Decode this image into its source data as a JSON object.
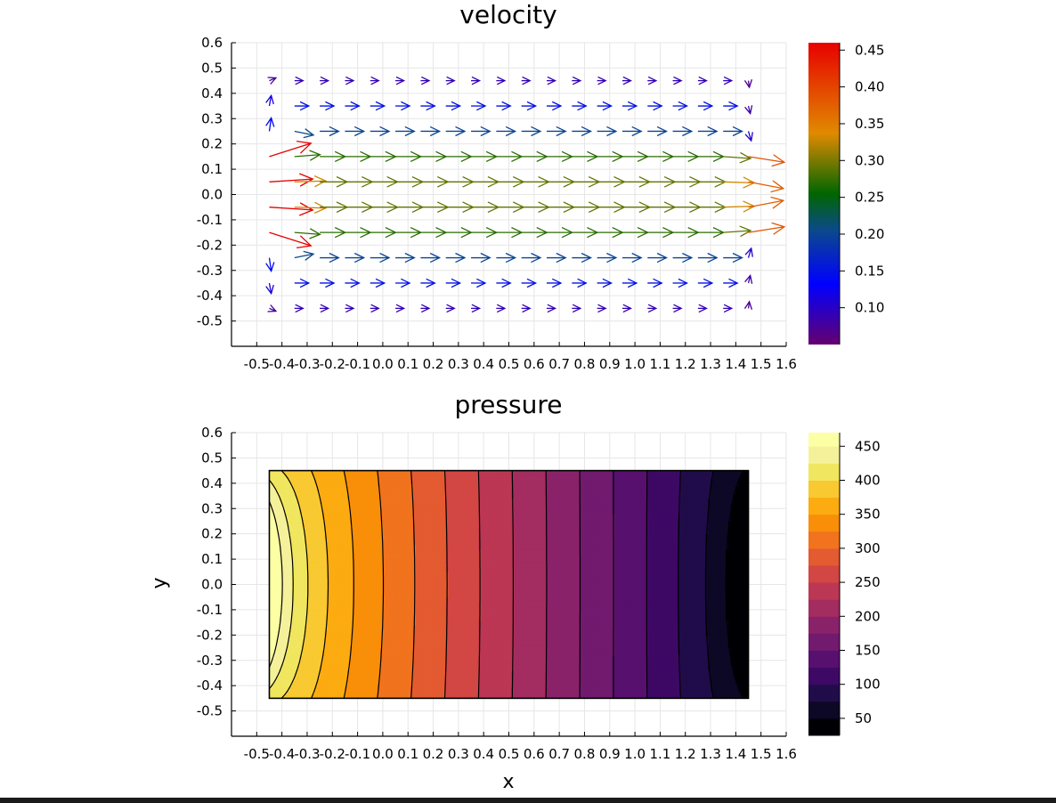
{
  "chart_data": [
    {
      "type": "quiver",
      "title": "velocity",
      "xlabel": "",
      "ylabel": "",
      "xlim": [
        -0.6,
        1.6
      ],
      "ylim": [
        -0.6,
        0.6
      ],
      "xticks": [
        "-0.5",
        "-0.4",
        "-0.3",
        "-0.2",
        "-0.1",
        "0.0",
        "0.1",
        "0.2",
        "0.3",
        "0.4",
        "0.5",
        "0.6",
        "0.7",
        "0.8",
        "0.9",
        "1.0",
        "1.1",
        "1.2",
        "1.3",
        "1.4",
        "1.5",
        "1.6"
      ],
      "yticks": [
        "-0.5",
        "-0.4",
        "-0.3",
        "-0.2",
        "-0.1",
        "0.0",
        "0.1",
        "0.2",
        "0.3",
        "0.4",
        "0.5",
        "0.6"
      ],
      "grid": true,
      "colormap": "rainbow",
      "colorbar": {
        "clim": [
          0.05,
          0.46
        ],
        "ticks": [
          "0.10",
          "0.15",
          "0.20",
          "0.25",
          "0.30",
          "0.35",
          "0.40",
          "0.45"
        ]
      },
      "rows_y": [
        0.45,
        0.35,
        0.25,
        0.15,
        0.05,
        -0.05,
        -0.15,
        -0.25,
        -0.35,
        -0.45
      ],
      "cols_x": [
        -0.45,
        -0.35,
        -0.25,
        -0.15,
        -0.05,
        0.05,
        0.15,
        0.25,
        0.35,
        0.45,
        0.55,
        0.65,
        0.75,
        0.85,
        0.95,
        1.05,
        1.15,
        1.25,
        1.35,
        1.45
      ],
      "profile_speeds": [
        0.09,
        0.15,
        0.2,
        0.27,
        0.29,
        0.29,
        0.27,
        0.2,
        0.15,
        0.09
      ]
    },
    {
      "type": "contour",
      "title": "pressure",
      "xlabel": "x",
      "ylabel": "y",
      "xlim": [
        -0.6,
        1.6
      ],
      "ylim": [
        -0.6,
        0.6
      ],
      "xticks": [
        "-0.5",
        "-0.4",
        "-0.3",
        "-0.2",
        "-0.1",
        "0.0",
        "0.1",
        "0.2",
        "0.3",
        "0.4",
        "0.5",
        "0.6",
        "0.7",
        "0.8",
        "0.9",
        "1.0",
        "1.1",
        "1.2",
        "1.3",
        "1.4",
        "1.5",
        "1.6"
      ],
      "yticks": [
        "-0.5",
        "-0.4",
        "-0.3",
        "-0.2",
        "-0.1",
        "0.0",
        "0.1",
        "0.2",
        "0.3",
        "0.4",
        "0.5",
        "0.6"
      ],
      "grid": true,
      "domain_x": [
        -0.45,
        1.45
      ],
      "domain_y": [
        -0.45,
        0.45
      ],
      "colormap": "inferno",
      "colorbar": {
        "clim": [
          25,
          470
        ],
        "ticks": [
          "50",
          "100",
          "150",
          "200",
          "250",
          "300",
          "350",
          "400",
          "450"
        ]
      },
      "levels": [
        25,
        50,
        75,
        100,
        125,
        150,
        175,
        200,
        225,
        250,
        275,
        300,
        325,
        350,
        375,
        400,
        425,
        450,
        470
      ],
      "level_colors": [
        "#000004",
        "#0c0826",
        "#210c4a",
        "#3d0965",
        "#57106e",
        "#711a6e",
        "#8a226a",
        "#a32c61",
        "#bc3754",
        "#d24644",
        "#e45a31",
        "#f1731d",
        "#f98e09",
        "#fcab10",
        "#f8c931",
        "#f0e65f",
        "#f5f19b",
        "#fcffa4"
      ]
    }
  ]
}
